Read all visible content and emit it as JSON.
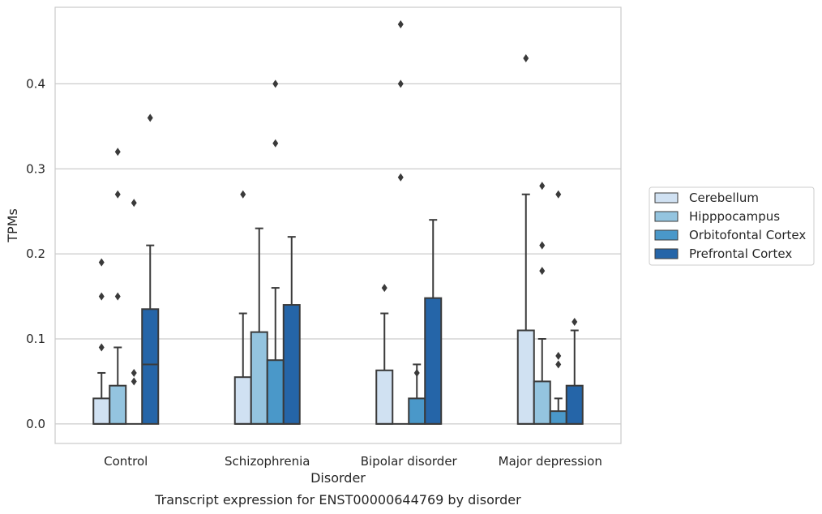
{
  "chart_data": {
    "type": "box",
    "title": "",
    "caption": "Transcript expression for ENST00000644769 by disorder",
    "xlabel": "Disorder",
    "ylabel": "TPMs",
    "ylim": [
      -0.023,
      0.49
    ],
    "yticks": [
      0.0,
      0.1,
      0.2,
      0.3,
      0.4
    ],
    "ytick_labels": [
      "0.0",
      "0.1",
      "0.2",
      "0.3",
      "0.4"
    ],
    "grid": "horizontal",
    "legend_position": "right",
    "categories": [
      "Control",
      "Schizophrenia",
      "Bipolar disorder",
      "Major depression"
    ],
    "series": [
      {
        "name": "Cerebellum",
        "color": "#d0e1f2",
        "boxes": [
          {
            "q1": 0.0,
            "median": 0.0,
            "q3": 0.03,
            "whisker_low": 0.0,
            "whisker_high": 0.06,
            "outliers": [
              0.09,
              0.15,
              0.19
            ]
          },
          {
            "q1": 0.0,
            "median": 0.0,
            "q3": 0.055,
            "whisker_low": 0.0,
            "whisker_high": 0.13,
            "outliers": [
              0.27
            ]
          },
          {
            "q1": 0.0,
            "median": 0.0,
            "q3": 0.063,
            "whisker_low": 0.0,
            "whisker_high": 0.13,
            "outliers": [
              0.16
            ]
          },
          {
            "q1": 0.0,
            "median": 0.0,
            "q3": 0.11,
            "whisker_low": 0.0,
            "whisker_high": 0.27,
            "outliers": [
              0.43
            ]
          }
        ]
      },
      {
        "name": "Hipppocampus",
        "color": "#94c4df",
        "boxes": [
          {
            "q1": 0.0,
            "median": 0.0,
            "q3": 0.045,
            "whisker_low": 0.0,
            "whisker_high": 0.09,
            "outliers": [
              0.15,
              0.27,
              0.32
            ]
          },
          {
            "q1": 0.0,
            "median": 0.0,
            "q3": 0.108,
            "whisker_low": 0.0,
            "whisker_high": 0.23,
            "outliers": []
          },
          {
            "q1": 0.0,
            "median": 0.0,
            "q3": 0.0,
            "whisker_low": 0.0,
            "whisker_high": 0.0,
            "outliers": [
              0.29,
              0.4,
              0.47
            ]
          },
          {
            "q1": 0.0,
            "median": 0.0,
            "q3": 0.05,
            "whisker_low": 0.0,
            "whisker_high": 0.1,
            "outliers": [
              0.18,
              0.21,
              0.28
            ]
          }
        ]
      },
      {
        "name": "Orbitofontal Cortex",
        "color": "#4a98c9",
        "boxes": [
          {
            "q1": 0.0,
            "median": 0.0,
            "q3": 0.0,
            "whisker_low": 0.0,
            "whisker_high": 0.0,
            "outliers": [
              0.05,
              0.06,
              0.26
            ]
          },
          {
            "q1": 0.0,
            "median": 0.0,
            "q3": 0.075,
            "whisker_low": 0.0,
            "whisker_high": 0.16,
            "outliers": [
              0.33,
              0.4
            ]
          },
          {
            "q1": 0.0,
            "median": 0.0,
            "q3": 0.03,
            "whisker_low": 0.0,
            "whisker_high": 0.07,
            "outliers": [
              0.06
            ]
          },
          {
            "q1": 0.0,
            "median": 0.0,
            "q3": 0.015,
            "whisker_low": 0.0,
            "whisker_high": 0.03,
            "outliers": [
              0.07,
              0.08,
              0.27
            ]
          }
        ]
      },
      {
        "name": "Prefrontal Cortex",
        "color": "#2565a8",
        "boxes": [
          {
            "q1": 0.0,
            "median": 0.07,
            "q3": 0.135,
            "whisker_low": 0.0,
            "whisker_high": 0.21,
            "outliers": [
              0.36
            ]
          },
          {
            "q1": 0.0,
            "median": 0.0,
            "q3": 0.14,
            "whisker_low": 0.0,
            "whisker_high": 0.22,
            "outliers": []
          },
          {
            "q1": 0.0,
            "median": 0.0,
            "q3": 0.148,
            "whisker_low": 0.0,
            "whisker_high": 0.24,
            "outliers": []
          },
          {
            "q1": 0.0,
            "median": 0.0,
            "q3": 0.045,
            "whisker_low": 0.0,
            "whisker_high": 0.11,
            "outliers": [
              0.12
            ]
          }
        ]
      }
    ]
  }
}
